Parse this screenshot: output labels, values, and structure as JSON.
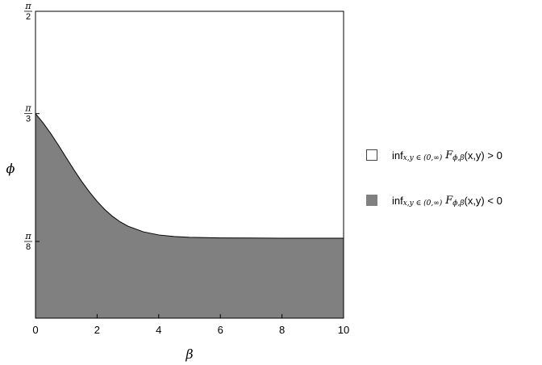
{
  "chart_data": {
    "type": "area",
    "title": "",
    "xlabel": "β",
    "ylabel": "ϕ",
    "xlim": [
      0,
      10
    ],
    "ylim": [
      0,
      1.5708
    ],
    "x_ticks": [
      {
        "value": 0,
        "label": "0"
      },
      {
        "value": 2,
        "label": "2"
      },
      {
        "value": 4,
        "label": "4"
      },
      {
        "value": 6,
        "label": "6"
      },
      {
        "value": 8,
        "label": "8"
      },
      {
        "value": 10,
        "label": "10"
      }
    ],
    "y_ticks": [
      {
        "value": 0.3927,
        "num": "π",
        "den": "8"
      },
      {
        "value": 1.0472,
        "num": "π",
        "den": "3"
      },
      {
        "value": 1.5708,
        "num": "π",
        "den": "2"
      }
    ],
    "boundary": {
      "x": [
        0,
        0.25,
        0.5,
        0.75,
        1.0,
        1.25,
        1.5,
        1.75,
        2.0,
        2.25,
        2.5,
        2.75,
        3.0,
        3.5,
        4.0,
        4.5,
        5.0,
        6.0,
        7.0,
        8.0,
        9.0,
        10.0
      ],
      "y": [
        1.0472,
        0.999,
        0.944,
        0.884,
        0.821,
        0.759,
        0.7,
        0.646,
        0.598,
        0.556,
        0.521,
        0.493,
        0.471,
        0.442,
        0.426,
        0.418,
        0.414,
        0.411,
        0.41,
        0.409,
        0.409,
        0.409
      ]
    },
    "regions": [
      {
        "name": "positive",
        "fill": "#ffffff",
        "position": "above"
      },
      {
        "name": "negative",
        "fill": "#808080",
        "position": "below"
      }
    ],
    "grid": false,
    "legend_position": "right"
  },
  "legend": {
    "items": [
      {
        "inf": "inf",
        "sub": "x,y ∈ (0,∞)",
        "fn": "F",
        "fsub": "ϕ,β",
        "args": "(x,y) > 0",
        "color": "#ffffff"
      },
      {
        "inf": "inf",
        "sub": "x,y ∈ (0,∞)",
        "fn": "F",
        "fsub": "ϕ,β",
        "args": "(x,y) < 0",
        "color": "#808080"
      }
    ]
  }
}
